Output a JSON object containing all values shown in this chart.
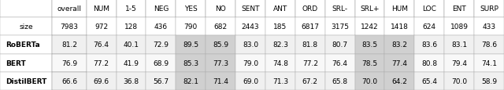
{
  "columns": [
    "overall",
    "NUM",
    "1-5",
    "NEG",
    "YES",
    "NO",
    "SENT",
    "ANT",
    "ORD",
    "SRL-",
    "SRL+",
    "HUM",
    "LOC",
    "ENT",
    "SURP"
  ],
  "size_row": [
    7983,
    972,
    128,
    436,
    790,
    682,
    2443,
    185,
    6817,
    3175,
    1242,
    1418,
    624,
    1089,
    433
  ],
  "models": [
    "RoBERTa",
    "BERT",
    "DistilBERT"
  ],
  "data": [
    [
      81.2,
      76.4,
      40.1,
      72.9,
      89.5,
      85.9,
      83.0,
      82.3,
      81.8,
      80.7,
      83.5,
      83.2,
      83.6,
      83.1,
      78.6
    ],
    [
      76.9,
      77.2,
      41.9,
      68.9,
      85.3,
      77.3,
      79.0,
      74.8,
      77.2,
      76.4,
      78.5,
      77.4,
      80.8,
      79.4,
      74.1
    ],
    [
      66.6,
      69.6,
      36.8,
      56.7,
      82.1,
      71.4,
      69.0,
      71.3,
      67.2,
      65.8,
      70.0,
      64.2,
      65.4,
      70.0,
      58.9
    ]
  ],
  "highlight_cols": [
    4,
    5,
    10,
    11
  ],
  "highlight_color_light": "#d0d0d0",
  "highlight_color_dark": "#b0b0b0",
  "bg_white": "#ffffff",
  "bg_gray_light": "#e8e8e8",
  "header_bg": "#ffffff",
  "table_bg": "#ffffff"
}
